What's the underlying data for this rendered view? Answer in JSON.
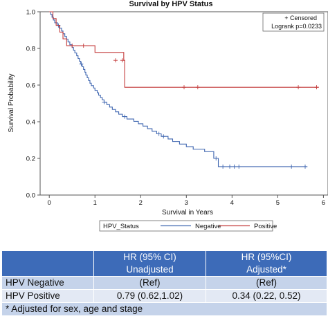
{
  "chart_data": {
    "type": "line",
    "title": "Survival by HPV Status",
    "xlabel": "Survival in Years",
    "ylabel": "Survival Probability",
    "xlim": [
      -0.2,
      6.1
    ],
    "ylim": [
      0.0,
      1.0
    ],
    "xticks": [
      0,
      1,
      2,
      3,
      4,
      5,
      6
    ],
    "yticks": [
      0.0,
      0.2,
      0.4,
      0.6,
      0.8,
      1.0
    ],
    "xtick_labels": [
      "0",
      "1",
      "2",
      "3",
      "4",
      "5",
      "6"
    ],
    "ytick_labels": [
      "0.0",
      "0.2",
      "0.4",
      "0.6",
      "0.8",
      "1.0"
    ],
    "step": true,
    "grid": false,
    "inset_legend": {
      "censored_label": "+ Censored",
      "logrank_label": "Logrank p=0.0233",
      "placement": "top-right"
    },
    "legend": {
      "title": "HPV_Status",
      "placement": "bottom"
    },
    "series": [
      {
        "name": "Negative",
        "color": "#3f66b0",
        "points": [
          [
            0,
            1.0
          ],
          [
            0.03,
            0.985
          ],
          [
            0.06,
            0.97
          ],
          [
            0.09,
            0.955
          ],
          [
            0.12,
            0.94
          ],
          [
            0.18,
            0.925
          ],
          [
            0.22,
            0.91
          ],
          [
            0.27,
            0.895
          ],
          [
            0.3,
            0.88
          ],
          [
            0.34,
            0.865
          ],
          [
            0.38,
            0.85
          ],
          [
            0.41,
            0.835
          ],
          [
            0.45,
            0.82
          ],
          [
            0.5,
            0.805
          ],
          [
            0.53,
            0.79
          ],
          [
            0.56,
            0.775
          ],
          [
            0.6,
            0.76
          ],
          [
            0.63,
            0.745
          ],
          [
            0.66,
            0.73
          ],
          [
            0.69,
            0.715
          ],
          [
            0.72,
            0.7
          ],
          [
            0.75,
            0.685
          ],
          [
            0.78,
            0.67
          ],
          [
            0.8,
            0.655
          ],
          [
            0.83,
            0.64
          ],
          [
            0.86,
            0.625
          ],
          [
            0.89,
            0.61
          ],
          [
            0.92,
            0.597
          ],
          [
            0.97,
            0.584
          ],
          [
            1.0,
            0.571
          ],
          [
            1.05,
            0.558
          ],
          [
            1.08,
            0.545
          ],
          [
            1.12,
            0.532
          ],
          [
            1.16,
            0.519
          ],
          [
            1.2,
            0.506
          ],
          [
            1.26,
            0.493
          ],
          [
            1.32,
            0.48
          ],
          [
            1.38,
            0.467
          ],
          [
            1.45,
            0.454
          ],
          [
            1.52,
            0.441
          ],
          [
            1.6,
            0.428
          ],
          [
            1.7,
            0.415
          ],
          [
            1.85,
            0.402
          ],
          [
            1.95,
            0.389
          ],
          [
            2.05,
            0.376
          ],
          [
            2.15,
            0.362
          ],
          [
            2.25,
            0.348
          ],
          [
            2.35,
            0.334
          ],
          [
            2.45,
            0.32
          ],
          [
            2.6,
            0.306
          ],
          [
            2.7,
            0.292
          ],
          [
            2.85,
            0.278
          ],
          [
            3.0,
            0.264
          ],
          [
            3.15,
            0.25
          ],
          [
            3.4,
            0.237
          ],
          [
            3.6,
            0.2
          ],
          [
            3.7,
            0.155
          ],
          [
            5.65,
            0.155
          ]
        ],
        "censored": [
          [
            0.2,
            0.925
          ],
          [
            0.7,
            0.715
          ],
          [
            1.2,
            0.506
          ],
          [
            1.65,
            0.428
          ],
          [
            2.4,
            0.334
          ],
          [
            2.5,
            0.32
          ],
          [
            3.65,
            0.2
          ],
          [
            3.8,
            0.155
          ],
          [
            3.95,
            0.155
          ],
          [
            4.05,
            0.155
          ],
          [
            4.15,
            0.155
          ],
          [
            5.3,
            0.155
          ],
          [
            5.6,
            0.155
          ]
        ]
      },
      {
        "name": "Positive",
        "color": "#c43a3a",
        "points": [
          [
            0,
            1.0
          ],
          [
            0.08,
            0.963
          ],
          [
            0.15,
            0.926
          ],
          [
            0.23,
            0.889
          ],
          [
            0.3,
            0.852
          ],
          [
            0.38,
            0.815
          ],
          [
            0.95,
            0.815
          ],
          [
            1.0,
            0.778
          ],
          [
            1.62,
            0.778
          ],
          [
            1.63,
            0.735
          ],
          [
            1.65,
            0.588
          ],
          [
            5.9,
            0.588
          ]
        ],
        "censored": [
          [
            0.5,
            0.815
          ],
          [
            0.75,
            0.815
          ],
          [
            1.45,
            0.735
          ],
          [
            1.6,
            0.735
          ],
          [
            2.95,
            0.588
          ],
          [
            3.25,
            0.588
          ],
          [
            5.45,
            0.588
          ],
          [
            5.85,
            0.588
          ]
        ]
      }
    ]
  },
  "table": {
    "header": {
      "col1": [
        "HR (95% CI)",
        "Unadjusted"
      ],
      "col2": [
        "HR (95%CI)",
        "Adjusted*"
      ]
    },
    "rows": [
      {
        "label": "HPV Negative",
        "col1": "(Ref)",
        "col2": "(Ref)"
      },
      {
        "label": "HPV Positive",
        "col1": "0.79 (0.62,1.02)",
        "col2": "0.34 (0.22, 0.52)"
      }
    ],
    "footnote": "* Adjusted for sex, age and stage"
  }
}
